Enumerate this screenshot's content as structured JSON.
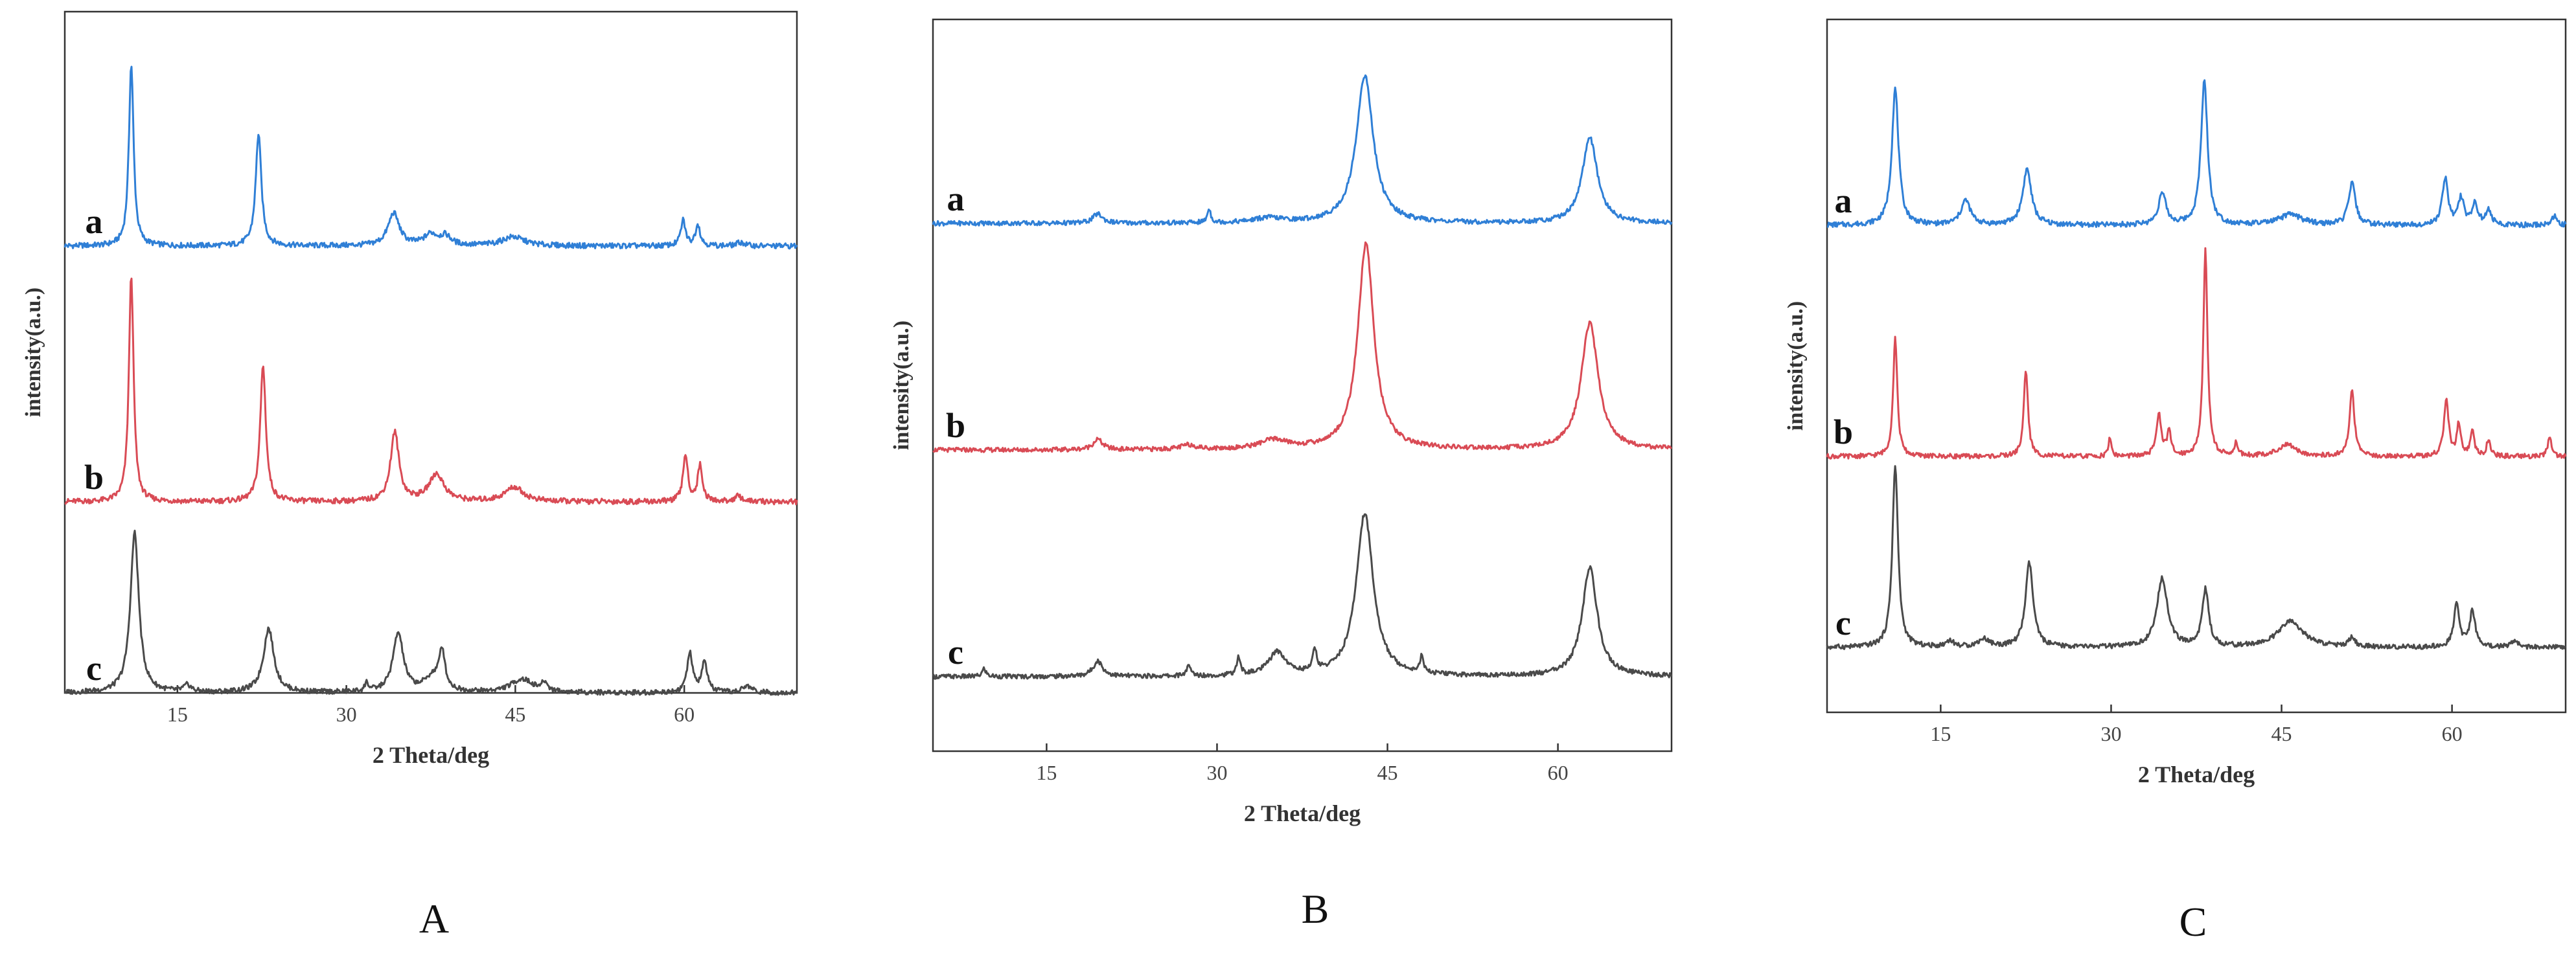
{
  "chart_data": [
    {
      "type": "line",
      "panel_label": "A",
      "xlabel": "2 Theta/deg",
      "ylabel": "intensity(a.u.)",
      "xlim": [
        5,
        70
      ],
      "xticks": [
        15,
        30,
        45,
        60
      ],
      "series": [
        {
          "name": "a",
          "color": "#2f7fd6",
          "peaks": [
            [
              10.9,
              1.0,
              0.25
            ],
            [
              22.2,
              0.62,
              0.3
            ],
            [
              34.2,
              0.18,
              0.6
            ],
            [
              37.5,
              0.06,
              0.7
            ],
            [
              38.8,
              0.05,
              0.6
            ],
            [
              44.8,
              0.05,
              1.2
            ],
            [
              59.9,
              0.14,
              0.25
            ],
            [
              61.2,
              0.12,
              0.25
            ],
            [
              65.0,
              0.02,
              0.4
            ]
          ]
        },
        {
          "name": "b",
          "color": "#d94b55",
          "peaks": [
            [
              10.9,
              1.25,
              0.25
            ],
            [
              22.6,
              0.75,
              0.3
            ],
            [
              34.3,
              0.38,
              0.45
            ],
            [
              38.0,
              0.15,
              0.8
            ],
            [
              44.9,
              0.08,
              1.0
            ],
            [
              60.1,
              0.26,
              0.25
            ],
            [
              61.4,
              0.2,
              0.25
            ],
            [
              64.8,
              0.03,
              0.4
            ]
          ]
        },
        {
          "name": "c",
          "color": "#4a4a4a",
          "peaks": [
            [
              11.2,
              0.95,
              0.45
            ],
            [
              23.1,
              0.38,
              0.55
            ],
            [
              34.6,
              0.35,
              0.55
            ],
            [
              38.5,
              0.22,
              0.3
            ],
            [
              37.7,
              0.09,
              0.9
            ],
            [
              31.8,
              0.05,
              0.2
            ],
            [
              45.6,
              0.08,
              1.2
            ],
            [
              47.6,
              0.05,
              0.3
            ],
            [
              15.9,
              0.04,
              0.4
            ],
            [
              60.5,
              0.23,
              0.3
            ],
            [
              61.8,
              0.18,
              0.3
            ],
            [
              65.6,
              0.04,
              0.5
            ]
          ]
        }
      ]
    },
    {
      "type": "line",
      "panel_label": "B",
      "xlabel": "2 Theta/deg",
      "ylabel": "intensity(a.u.)",
      "xlim": [
        5,
        70
      ],
      "xticks": [
        15,
        30,
        45,
        60
      ],
      "series": [
        {
          "name": "a",
          "color": "#2f7fd6",
          "peaks": [
            [
              19.5,
              0.06,
              0.5
            ],
            [
              29.3,
              0.09,
              0.18
            ],
            [
              34.5,
              0.03,
              1.5
            ],
            [
              43.0,
              0.95,
              0.9
            ],
            [
              62.8,
              0.55,
              0.8
            ]
          ]
        },
        {
          "name": "b",
          "color": "#d94b55",
          "peaks": [
            [
              19.5,
              0.07,
              0.5
            ],
            [
              27.5,
              0.03,
              0.8
            ],
            [
              35.0,
              0.06,
              1.5
            ],
            [
              43.1,
              1.38,
              0.85
            ],
            [
              62.8,
              0.85,
              0.9
            ]
          ]
        },
        {
          "name": "c",
          "color": "#4a4a4a",
          "peaks": [
            [
              9.5,
              0.05,
              0.2
            ],
            [
              19.5,
              0.1,
              0.5
            ],
            [
              27.5,
              0.06,
              0.25
            ],
            [
              31.9,
              0.11,
              0.2
            ],
            [
              35.3,
              0.15,
              0.9
            ],
            [
              38.6,
              0.14,
              0.2
            ],
            [
              43.0,
              1.05,
              0.9
            ],
            [
              48.0,
              0.1,
              0.2
            ],
            [
              62.8,
              0.7,
              0.8
            ]
          ]
        }
      ]
    },
    {
      "type": "line",
      "panel_label": "C",
      "xlabel": "2 Theta/deg",
      "ylabel": "intensity(a.u.)",
      "xlim": [
        5,
        70
      ],
      "xticks": [
        15,
        30,
        45,
        60
      ],
      "series": [
        {
          "name": "a",
          "color": "#2f7fd6",
          "peaks": [
            [
              11.0,
              0.78,
              0.35
            ],
            [
              17.2,
              0.14,
              0.5
            ],
            [
              22.6,
              0.32,
              0.45
            ],
            [
              34.5,
              0.18,
              0.4
            ],
            [
              38.2,
              0.82,
              0.35
            ],
            [
              45.8,
              0.06,
              1.2
            ],
            [
              51.2,
              0.24,
              0.35
            ],
            [
              59.4,
              0.27,
              0.3
            ],
            [
              60.8,
              0.15,
              0.3
            ],
            [
              62.0,
              0.12,
              0.3
            ],
            [
              63.2,
              0.08,
              0.3
            ],
            [
              69.0,
              0.05,
              0.3
            ]
          ]
        },
        {
          "name": "b",
          "color": "#d94b55",
          "peaks": [
            [
              11.0,
              0.75,
              0.22
            ],
            [
              22.5,
              0.55,
              0.22
            ],
            [
              29.9,
              0.12,
              0.15
            ],
            [
              34.2,
              0.27,
              0.25
            ],
            [
              35.1,
              0.15,
              0.2
            ],
            [
              38.3,
              1.3,
              0.22
            ],
            [
              41.0,
              0.08,
              0.2
            ],
            [
              45.5,
              0.07,
              1.0
            ],
            [
              51.2,
              0.42,
              0.25
            ],
            [
              59.5,
              0.35,
              0.25
            ],
            [
              60.6,
              0.2,
              0.2
            ],
            [
              61.8,
              0.15,
              0.2
            ],
            [
              63.2,
              0.1,
              0.2
            ],
            [
              68.6,
              0.12,
              0.2
            ]
          ]
        },
        {
          "name": "c",
          "color": "#4a4a4a",
          "peaks": [
            [
              11.0,
              1.12,
              0.3
            ],
            [
              15.8,
              0.04,
              0.4
            ],
            [
              18.8,
              0.05,
              0.6
            ],
            [
              22.8,
              0.52,
              0.4
            ],
            [
              34.5,
              0.43,
              0.55
            ],
            [
              38.3,
              0.35,
              0.35
            ],
            [
              45.8,
              0.16,
              1.3
            ],
            [
              51.2,
              0.06,
              0.3
            ],
            [
              60.4,
              0.26,
              0.3
            ],
            [
              61.8,
              0.22,
              0.3
            ],
            [
              65.5,
              0.04,
              0.4
            ]
          ]
        }
      ]
    }
  ]
}
